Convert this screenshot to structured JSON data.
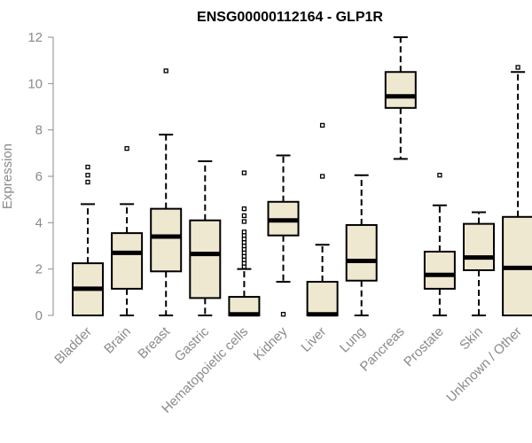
{
  "chart_data": {
    "type": "boxplot",
    "title": "ENSG00000112164 - GLP1R",
    "xlabel": "",
    "ylabel": "Expression",
    "ylim": [
      0,
      12
    ],
    "yticks": [
      0,
      2,
      4,
      6,
      8,
      10,
      12
    ],
    "grid": false,
    "legend": "none",
    "box_fill": "#efe8d0",
    "box_stroke": "#000000",
    "categories": [
      "Bladder",
      "Brain",
      "Breast",
      "Gastric",
      "Hematopoietic cells",
      "Kidney",
      "Liver",
      "Lung",
      "Pancreas",
      "Prostate",
      "Skin",
      "Unknown / Other"
    ],
    "boxes": [
      {
        "min": 0,
        "q1": 0,
        "median": 1.15,
        "q3": 2.25,
        "max": 4.8,
        "outliers": [
          5.75,
          6.05,
          6.4
        ]
      },
      {
        "min": 0,
        "q1": 1.15,
        "median": 2.7,
        "q3": 3.55,
        "max": 4.8,
        "outliers": [
          7.2
        ]
      },
      {
        "min": 0,
        "q1": 1.9,
        "median": 3.4,
        "q3": 4.6,
        "max": 7.8,
        "outliers": [
          10.55
        ]
      },
      {
        "min": 0,
        "q1": 0.75,
        "median": 2.65,
        "q3": 4.1,
        "max": 6.65,
        "outliers": []
      },
      {
        "min": 0,
        "q1": 0,
        "median": 0.05,
        "q3": 0.8,
        "max": 2.0,
        "outliers": [
          2.1,
          2.25,
          2.4,
          2.55,
          2.7,
          2.85,
          3.0,
          3.15,
          3.3,
          3.45,
          3.6,
          4.05,
          4.3,
          4.6,
          6.15
        ]
      },
      {
        "min": 1.45,
        "q1": 3.45,
        "median": 4.1,
        "q3": 4.9,
        "max": 6.9,
        "outliers": [
          0.05
        ]
      },
      {
        "min": 0,
        "q1": 0,
        "median": 0.05,
        "q3": 1.45,
        "max": 3.05,
        "outliers": [
          6.0,
          8.2
        ]
      },
      {
        "min": 0,
        "q1": 1.5,
        "median": 2.35,
        "q3": 3.9,
        "max": 6.05,
        "outliers": []
      },
      {
        "min": 6.75,
        "q1": 8.95,
        "median": 9.45,
        "q3": 10.5,
        "max": 12.0,
        "outliers": []
      },
      {
        "min": 0,
        "q1": 1.15,
        "median": 1.75,
        "q3": 2.75,
        "max": 4.75,
        "outliers": [
          6.05
        ]
      },
      {
        "min": 0,
        "q1": 1.95,
        "median": 2.5,
        "q3": 3.95,
        "max": 4.45,
        "outliers": []
      },
      {
        "min": 0,
        "q1": 0,
        "median": 2.05,
        "q3": 4.25,
        "max": 10.5,
        "outliers": [
          10.7
        ]
      }
    ]
  }
}
